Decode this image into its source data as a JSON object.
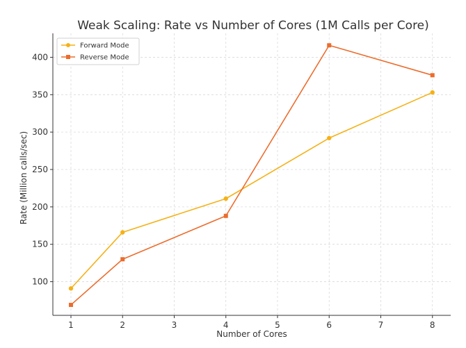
{
  "chart_data": {
    "type": "line",
    "title": "Weak Scaling: Rate vs Number of Cores (1M Calls per Core)",
    "xlabel": "Number of Cores",
    "ylabel": "Rate (Million calls/sec)",
    "xticks": [
      "1",
      "2",
      "3",
      "4",
      "5",
      "6",
      "7",
      "8"
    ],
    "yticks": [
      100,
      150,
      200,
      250,
      300,
      350,
      400
    ],
    "ylim": [
      55,
      432
    ],
    "grid": true,
    "legend": "top-left",
    "x_note": "Category positions; tick labels as printed (1,2,3,4,5,6,7,8); data points at categories 1,2,4,6,8",
    "series": [
      {
        "name": "Forward Mode",
        "marker": "circle",
        "color": "#f5b116",
        "x": [
          "1",
          "2",
          "4",
          "6",
          "8"
        ],
        "values": [
          91,
          166,
          211,
          292,
          353
        ]
      },
      {
        "name": "Reverse Mode",
        "marker": "square",
        "color": "#ec6c2c",
        "x": [
          "1",
          "2",
          "4",
          "6",
          "8"
        ],
        "values": [
          69,
          130,
          188,
          416,
          376
        ]
      }
    ]
  }
}
